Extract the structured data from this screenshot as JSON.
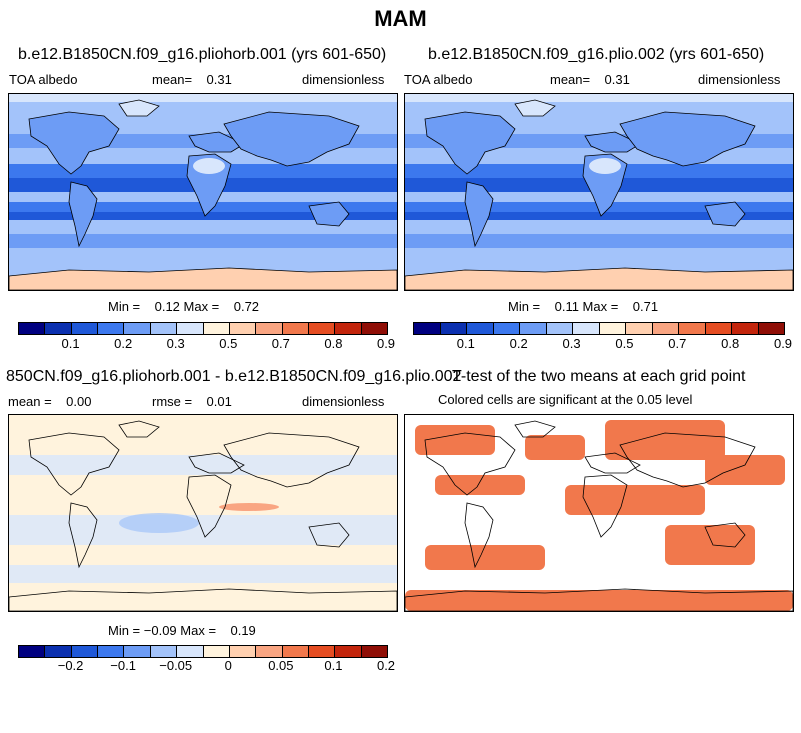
{
  "figure_title": "MAM",
  "chart_data": [
    {
      "type": "heatmap",
      "title": "b.e12.B1850CN.f09_g16.pliohorb.001 (yrs 601-650)",
      "left_label": "TOA albedo",
      "mean_text": "mean=    0.31",
      "units": "dimensionless",
      "min": 0.12,
      "max": 0.72,
      "minmax_text": "Min =    0.12 Max =    0.72",
      "colorbar_colors": [
        "#000080",
        "#0b30b0",
        "#1f58d8",
        "#3c78ee",
        "#6d9cf5",
        "#a3c3fa",
        "#d8e6fc",
        "#fff3dd",
        "#ffd0b0",
        "#f9a582",
        "#f1784c",
        "#e54d22",
        "#c3250c",
        "#8f0e06"
      ],
      "colorbar_ticks": [
        "0.1",
        "0.2",
        "0.3",
        "0.5",
        "0.7",
        "0.8",
        "0.9"
      ]
    },
    {
      "type": "heatmap",
      "title": "b.e12.B1850CN.f09_g16.plio.002 (yrs 601-650)",
      "left_label": "TOA albedo",
      "mean_text": "mean=    0.31",
      "units": "dimensionless",
      "min": 0.11,
      "max": 0.71,
      "minmax_text": "Min =    0.11 Max =    0.71",
      "colorbar_colors": [
        "#000080",
        "#0b30b0",
        "#1f58d8",
        "#3c78ee",
        "#6d9cf5",
        "#a3c3fa",
        "#d8e6fc",
        "#fff3dd",
        "#ffd0b0",
        "#f9a582",
        "#f1784c",
        "#e54d22",
        "#c3250c",
        "#8f0e06"
      ],
      "colorbar_ticks": [
        "0.1",
        "0.2",
        "0.3",
        "0.5",
        "0.7",
        "0.8",
        "0.9"
      ]
    },
    {
      "type": "heatmap",
      "title": "850CN.f09_g16.pliohorb.001 - b.e12.B1850CN.f09_g16.plio.002",
      "mean_text": "mean =    0.00",
      "rmse_text": "rmse =    0.01",
      "units": "dimensionless",
      "min": -0.09,
      "max": 0.19,
      "minmax_text": "Min = −0.09 Max =    0.19",
      "colorbar_colors": [
        "#000080",
        "#0b30b0",
        "#1f58d8",
        "#3c78ee",
        "#6d9cf5",
        "#a3c3fa",
        "#d8e6fc",
        "#fff3dd",
        "#ffd0b0",
        "#f9a582",
        "#f1784c",
        "#e54d22",
        "#c3250c",
        "#8f0e06"
      ],
      "colorbar_ticks": [
        "−0.2",
        "−0.1",
        "−0.05",
        "0",
        "0.05",
        "0.1",
        "0.2"
      ]
    },
    {
      "type": "heatmap",
      "title": "T-test of the two means at each grid point",
      "subtitle": "Colored cells are significant at the 0.05 level",
      "significant_color": "#f1784c"
    }
  ]
}
